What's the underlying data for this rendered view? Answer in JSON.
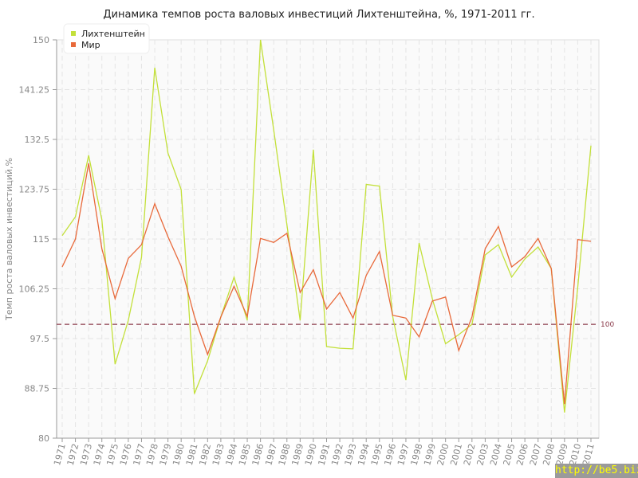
{
  "chart_data": {
    "type": "line",
    "title": "Динамика темпов роста валовых инвестиций Лихтенштейна, %, 1971-2011 гг.",
    "xlabel": "",
    "ylabel": "Темп роста валовых инвестиций,%",
    "ylim": [
      80,
      150
    ],
    "yticks": [
      "80",
      "88.75",
      "97.5",
      "106.25",
      "115",
      "123.75",
      "132.5",
      "141.25",
      "150"
    ],
    "grid": true,
    "legend_position": "top-left",
    "x": [
      "1971",
      "1972",
      "1973",
      "1974",
      "1975",
      "1976",
      "1977",
      "1978",
      "1979",
      "1980",
      "1981",
      "1982",
      "1983",
      "1984",
      "1985",
      "1986",
      "1987",
      "1988",
      "1989",
      "1990",
      "1991",
      "1992",
      "1993",
      "1994",
      "1995",
      "1996",
      "1997",
      "1998",
      "1999",
      "2000",
      "2001",
      "2002",
      "2003",
      "2004",
      "2005",
      "2006",
      "2007",
      "2008",
      "2009",
      "2010",
      "2011"
    ],
    "series": [
      {
        "name": "Лихтенштейн",
        "color": "#c3e03a",
        "values": [
          115.6,
          118.9,
          129.7,
          118.4,
          93.0,
          100.7,
          111.8,
          145.1,
          130.1,
          123.7,
          87.8,
          93.6,
          101.3,
          108.3,
          100.7,
          150.0,
          134.2,
          117.5,
          100.7,
          130.7,
          96.1,
          95.8,
          95.7,
          124.6,
          124.3,
          101.4,
          90.2,
          114.3,
          104.5,
          96.6,
          98.2,
          100.0,
          112.2,
          114.0,
          108.3,
          111.5,
          113.6,
          109.8,
          84.5,
          106.5,
          131.4
        ]
      },
      {
        "name": "Мир",
        "color": "#e8693a",
        "values": [
          110.1,
          115.0,
          128.3,
          113.3,
          104.5,
          111.6,
          114.0,
          121.2,
          115.4,
          110.2,
          101.4,
          94.7,
          101.3,
          106.7,
          101.4,
          115.1,
          114.4,
          116.0,
          105.6,
          109.6,
          102.7,
          105.6,
          101.1,
          108.6,
          112.8,
          101.6,
          101.1,
          97.8,
          104.1,
          104.8,
          95.4,
          101.3,
          113.3,
          117.2,
          110.1,
          111.9,
          115.1,
          109.8,
          86.0,
          114.9,
          114.6
        ]
      }
    ],
    "reference_line": {
      "value": 100,
      "label": "100",
      "color": "#8b3a4a"
    }
  },
  "watermark": "http://be5.biz/"
}
